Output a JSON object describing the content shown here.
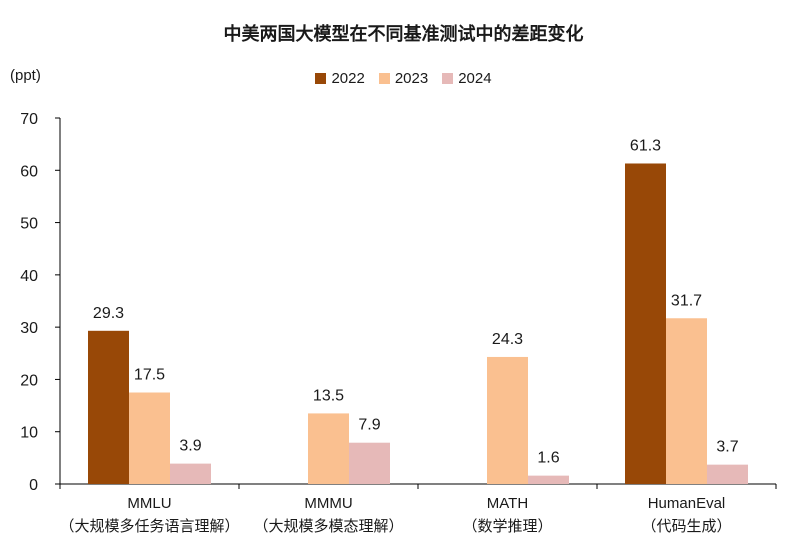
{
  "chart_data": {
    "type": "bar",
    "title": "中美两国大模型在不同基准测试中的差距变化",
    "ylabel": "(ppt)",
    "ylim": [
      0,
      70
    ],
    "yticks": [
      0,
      10,
      20,
      30,
      40,
      50,
      60,
      70
    ],
    "legend_position": "top-center",
    "grid": false,
    "categories": [
      {
        "line1": "MMLU",
        "line2": "（大规模多任务语言理解）"
      },
      {
        "line1": "MMMU",
        "line2": "（大规模多模态理解）"
      },
      {
        "line1": "MATH",
        "line2": "（数学推理）"
      },
      {
        "line1": "HumanEval",
        "line2": "（代码生成）"
      }
    ],
    "series": [
      {
        "name": "2022",
        "color": "#984807",
        "values": [
          29.3,
          null,
          null,
          61.3
        ]
      },
      {
        "name": "2023",
        "color": "#FAC090",
        "values": [
          17.5,
          13.5,
          24.3,
          31.7
        ]
      },
      {
        "name": "2024",
        "color": "#E6B9B8",
        "values": [
          3.9,
          7.9,
          1.6,
          3.7
        ]
      }
    ]
  }
}
